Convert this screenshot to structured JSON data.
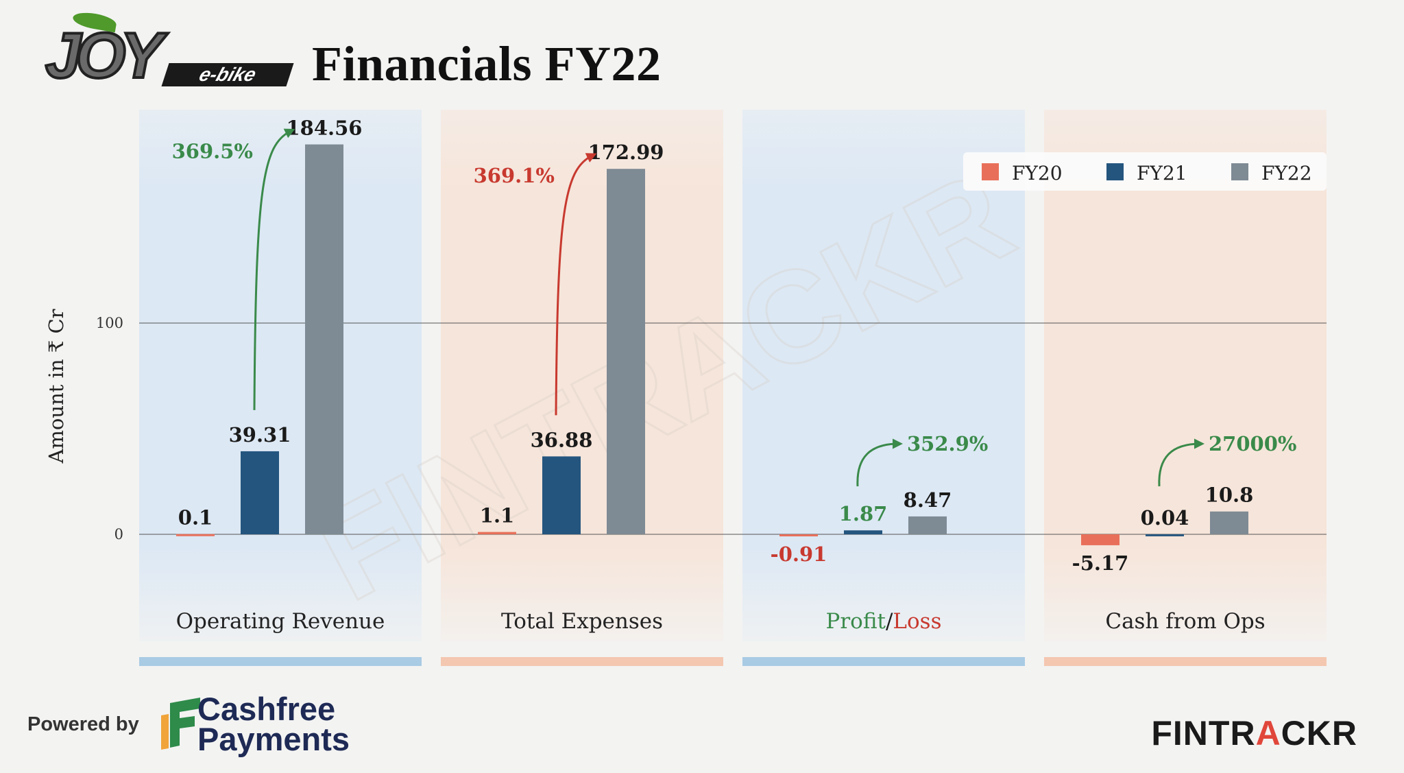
{
  "header": {
    "brand_main": "JOY",
    "brand_sub": "e-bike",
    "title": "Financials FY22"
  },
  "footer": {
    "powered_by": "Powered by",
    "partner_line1": "Cashfree",
    "partner_line2": "Payments",
    "publisher_a": "FINTR",
    "publisher_accent": "A",
    "publisher_b": "CKR"
  },
  "colors": {
    "FY20": "#e8705a",
    "FY21": "#24557e",
    "FY22": "#7e8a94",
    "panel_blue": "#dce8f4",
    "panel_peach": "#f6e5da",
    "strip_blue": "#a9cbe4",
    "strip_peach": "#f4c7b0",
    "growth_green": "#3a8a4a",
    "growth_red": "#c8392f"
  },
  "chart_data": {
    "type": "bar",
    "ylabel": "Amount in ₹ Cr",
    "yticks": [
      0,
      100
    ],
    "ylim": [
      -44,
      200
    ],
    "grid": true,
    "legend_position": "top-right",
    "series_names": [
      "FY20",
      "FY21",
      "FY22"
    ],
    "categories": [
      {
        "name": "Operating Revenue",
        "values": [
          0.1,
          39.31,
          184.56
        ],
        "labels": [
          "0.1",
          "39.31",
          "184.56"
        ],
        "growth": "369.5%",
        "growth_color": "green",
        "panel": "blue"
      },
      {
        "name": "Total Expenses",
        "values": [
          1.1,
          36.88,
          172.99
        ],
        "labels": [
          "1.1",
          "36.88",
          "172.99"
        ],
        "growth": "369.1%",
        "growth_color": "red",
        "panel": "peach"
      },
      {
        "name_parts": [
          {
            "text": "Profit",
            "color": "green"
          },
          {
            "text": "/",
            "color": "dark"
          },
          {
            "text": "Loss",
            "color": "red"
          }
        ],
        "values": [
          -0.91,
          1.87,
          8.47
        ],
        "labels": [
          "-0.91",
          "1.87",
          "8.47"
        ],
        "label_colors": [
          "red",
          "green",
          "dark"
        ],
        "growth": "352.9%",
        "growth_color": "green",
        "panel": "blue"
      },
      {
        "name": "Cash from Ops",
        "values": [
          -5.17,
          0.04,
          10.8
        ],
        "labels": [
          "-5.17",
          "0.04",
          "10.8"
        ],
        "growth": "27000%",
        "growth_color": "green",
        "panel": "peach"
      }
    ]
  }
}
